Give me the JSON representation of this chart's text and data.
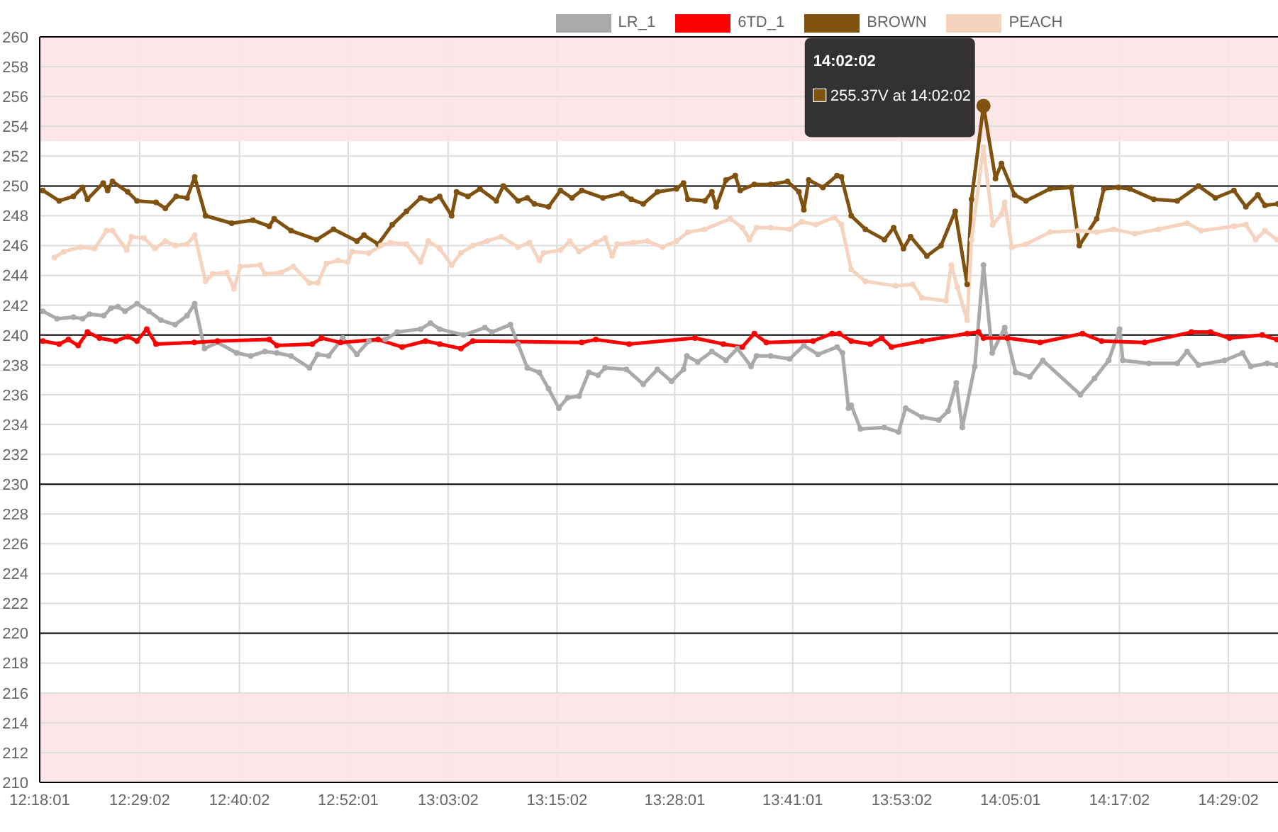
{
  "chart_data": {
    "type": "line",
    "legend": "top",
    "grid": true,
    "marker": "circle",
    "line_style": "solid",
    "xlim": [
      12.3003,
      14.575
    ],
    "xticks": [
      {
        "value": 12.3003,
        "label": "12:18:01"
      },
      {
        "value": 12.4839,
        "label": "12:29:02"
      },
      {
        "value": 12.6672,
        "label": "12:40:02"
      },
      {
        "value": 12.8669,
        "label": "12:52:01"
      },
      {
        "value": 13.0506,
        "label": "13:03:02"
      },
      {
        "value": 13.2506,
        "label": "13:15:02"
      },
      {
        "value": 13.4669,
        "label": "13:28:01"
      },
      {
        "value": 13.6836,
        "label": "13:41:01"
      },
      {
        "value": 13.8839,
        "label": "13:53:02"
      },
      {
        "value": 14.0836,
        "label": "14:05:01"
      },
      {
        "value": 14.2839,
        "label": "14:17:02"
      },
      {
        "value": 14.4839,
        "label": "14:29:02"
      }
    ],
    "ylim": [
      210,
      260
    ],
    "yticks": [
      210,
      212,
      214,
      216,
      218,
      220,
      222,
      224,
      226,
      228,
      230,
      232,
      234,
      236,
      238,
      240,
      242,
      244,
      246,
      248,
      250,
      252,
      254,
      256,
      258,
      260
    ],
    "bands": [
      {
        "axis": "y",
        "from": 253,
        "to": 260,
        "color": "#fde3e4"
      },
      {
        "axis": "y",
        "from": 210,
        "to": 216,
        "color": "#fde3e4"
      }
    ],
    "annotations": [
      "14:02:02",
      "255.37V at 14:02:02"
    ],
    "series": [
      {
        "name": "LR_1",
        "color": "#aaaaaa",
        "x": [
          12.306,
          12.332,
          12.362,
          12.379,
          12.392,
          12.418,
          12.431,
          12.444,
          12.457,
          12.479,
          12.501,
          12.523,
          12.549,
          12.571,
          12.585,
          12.603,
          12.627,
          12.662,
          12.688,
          12.714,
          12.736,
          12.762,
          12.796,
          12.811,
          12.831,
          12.857,
          12.883,
          12.905,
          12.935,
          12.957,
          13.0,
          13.018,
          13.035,
          13.079,
          13.118,
          13.131,
          13.165,
          13.179,
          13.196,
          13.218,
          13.235,
          13.254,
          13.27,
          13.291,
          13.309,
          13.326,
          13.339,
          13.378,
          13.409,
          13.435,
          13.461,
          13.483,
          13.489,
          13.509,
          13.535,
          13.561,
          13.582,
          13.607,
          13.617,
          13.643,
          13.678,
          13.704,
          13.73,
          13.765,
          13.775,
          13.786,
          13.791,
          13.808,
          13.852,
          13.878,
          13.891,
          13.921,
          13.952,
          13.969,
          13.984,
          13.995,
          14.018,
          14.034,
          14.05,
          14.073,
          14.093,
          14.119,
          14.143,
          14.212,
          14.238,
          14.264,
          14.284,
          14.29,
          14.338,
          14.39,
          14.408,
          14.429,
          14.477,
          14.51,
          14.525,
          14.555,
          14.573
        ],
        "values": [
          241.6,
          241.1,
          241.2,
          241.1,
          241.4,
          241.3,
          241.8,
          241.9,
          241.6,
          242.1,
          241.6,
          241.0,
          240.7,
          241.3,
          242.1,
          239.1,
          239.5,
          238.8,
          238.6,
          238.9,
          238.8,
          238.6,
          237.8,
          238.7,
          238.6,
          239.8,
          238.7,
          239.6,
          239.7,
          240.2,
          240.4,
          240.8,
          240.4,
          240.0,
          240.5,
          240.2,
          240.7,
          239.4,
          237.8,
          237.5,
          236.4,
          235.1,
          235.8,
          235.9,
          237.5,
          237.3,
          237.8,
          237.7,
          236.7,
          237.7,
          236.9,
          237.7,
          238.6,
          238.2,
          238.9,
          238.3,
          239.1,
          237.9,
          238.6,
          238.6,
          238.4,
          239.3,
          238.7,
          239.2,
          238.8,
          235.1,
          235.3,
          233.7,
          233.8,
          233.5,
          235.1,
          234.5,
          234.3,
          234.9,
          236.8,
          233.8,
          237.9,
          244.7,
          238.8,
          240.5,
          237.5,
          237.2,
          238.3,
          236.0,
          237.1,
          238.3,
          240.4,
          238.3,
          238.1,
          238.1,
          238.9,
          238.0,
          238.3,
          238.8,
          237.9,
          238.1,
          238.0
        ]
      },
      {
        "name": "6TD_1",
        "color": "#ff0000",
        "x": [
          12.306,
          12.336,
          12.353,
          12.371,
          12.388,
          12.41,
          12.44,
          12.462,
          12.479,
          12.497,
          12.514,
          12.584,
          12.627,
          12.722,
          12.736,
          12.801,
          12.818,
          12.853,
          12.922,
          12.966,
          13.009,
          13.035,
          13.074,
          13.096,
          13.296,
          13.322,
          13.383,
          13.504,
          13.556,
          13.591,
          13.613,
          13.635,
          13.721,
          13.756,
          13.769,
          13.791,
          13.826,
          13.847,
          13.865,
          13.921,
          14.004,
          14.025,
          14.034,
          14.078,
          14.138,
          14.216,
          14.251,
          14.33,
          14.416,
          14.451,
          14.486,
          14.546,
          14.573
        ],
        "values": [
          239.6,
          239.4,
          239.7,
          239.3,
          240.2,
          239.8,
          239.6,
          239.9,
          239.6,
          240.4,
          239.4,
          239.5,
          239.6,
          239.7,
          239.3,
          239.4,
          239.8,
          239.5,
          239.7,
          239.2,
          239.6,
          239.4,
          239.1,
          239.6,
          239.5,
          239.7,
          239.4,
          239.8,
          239.4,
          239.2,
          240.1,
          239.5,
          239.6,
          240.1,
          240.1,
          239.6,
          239.4,
          239.8,
          239.2,
          239.6,
          240.1,
          240.2,
          239.8,
          239.8,
          239.5,
          240.1,
          239.6,
          239.5,
          240.2,
          240.2,
          239.8,
          240.0,
          239.7
        ]
      },
      {
        "name": "BROWN",
        "color": "#7f5210",
        "x": [
          12.306,
          12.336,
          12.362,
          12.379,
          12.388,
          12.417,
          12.425,
          12.434,
          12.462,
          12.479,
          12.514,
          12.531,
          12.551,
          12.571,
          12.585,
          12.605,
          12.653,
          12.692,
          12.722,
          12.731,
          12.762,
          12.809,
          12.84,
          12.883,
          12.896,
          12.922,
          12.948,
          12.974,
          13.0,
          13.018,
          13.035,
          13.057,
          13.066,
          13.087,
          13.109,
          13.139,
          13.152,
          13.179,
          13.196,
          13.209,
          13.235,
          13.257,
          13.278,
          13.296,
          13.335,
          13.37,
          13.387,
          13.409,
          13.435,
          13.47,
          13.483,
          13.491,
          13.522,
          13.535,
          13.543,
          13.561,
          13.578,
          13.587,
          13.613,
          13.643,
          13.674,
          13.695,
          13.704,
          13.713,
          13.739,
          13.765,
          13.773,
          13.791,
          13.817,
          13.852,
          13.869,
          13.887,
          13.9,
          13.93,
          13.956,
          13.982,
          14.004,
          14.012,
          14.034,
          14.056,
          14.067,
          14.091,
          14.112,
          14.156,
          14.195,
          14.21,
          14.242,
          14.255,
          14.282,
          14.303,
          14.347,
          14.39,
          14.429,
          14.46,
          14.494,
          14.516,
          14.538,
          14.551,
          14.575
        ],
        "values": [
          249.7,
          249.0,
          249.3,
          249.9,
          249.1,
          250.2,
          249.7,
          250.3,
          249.6,
          249.0,
          248.9,
          248.5,
          249.3,
          249.2,
          250.6,
          248.0,
          247.5,
          247.7,
          247.3,
          247.8,
          247.0,
          246.4,
          247.1,
          246.3,
          246.7,
          246.1,
          247.4,
          248.3,
          249.2,
          249.0,
          249.3,
          248.0,
          249.6,
          249.3,
          249.8,
          249.0,
          250.0,
          249.0,
          249.2,
          248.8,
          248.6,
          249.7,
          249.2,
          249.7,
          249.2,
          249.5,
          249.1,
          248.8,
          249.6,
          249.8,
          250.2,
          249.1,
          249.0,
          249.6,
          248.6,
          250.4,
          250.7,
          249.7,
          250.1,
          250.1,
          250.3,
          249.6,
          248.4,
          250.4,
          249.9,
          250.7,
          250.6,
          248.0,
          247.1,
          246.4,
          247.2,
          245.8,
          246.6,
          245.3,
          246.0,
          248.3,
          243.4,
          249.1,
          255.37,
          250.5,
          251.5,
          249.4,
          249.0,
          249.8,
          249.9,
          246.0,
          247.8,
          249.8,
          249.9,
          249.8,
          249.1,
          249.0,
          250.0,
          249.2,
          249.7,
          248.6,
          249.4,
          248.7,
          248.8
        ]
      },
      {
        "name": "PEACH",
        "color": "#f5d3bf",
        "x": [
          12.327,
          12.345,
          12.375,
          12.401,
          12.423,
          12.434,
          12.46,
          12.469,
          12.492,
          12.512,
          12.531,
          12.549,
          12.571,
          12.585,
          12.605,
          12.618,
          12.644,
          12.657,
          12.669,
          12.705,
          12.714,
          12.744,
          12.766,
          12.796,
          12.811,
          12.827,
          12.848,
          12.866,
          12.874,
          12.905,
          12.927,
          12.944,
          12.974,
          13.0,
          13.014,
          13.035,
          13.057,
          13.074,
          13.096,
          13.122,
          13.148,
          13.179,
          13.2,
          13.218,
          13.226,
          13.257,
          13.274,
          13.291,
          13.322,
          13.339,
          13.352,
          13.361,
          13.391,
          13.417,
          13.444,
          13.47,
          13.491,
          13.522,
          13.569,
          13.591,
          13.604,
          13.617,
          13.643,
          13.678,
          13.7,
          13.726,
          13.76,
          13.773,
          13.791,
          13.817,
          13.873,
          13.904,
          13.921,
          13.965,
          13.975,
          13.986,
          14.004,
          14.012,
          14.034,
          14.051,
          14.067,
          14.073,
          14.086,
          14.112,
          14.156,
          14.208,
          14.242,
          14.273,
          14.312,
          14.356,
          14.408,
          14.434,
          14.494,
          14.516,
          14.534,
          14.551,
          14.573
        ],
        "values": [
          245.2,
          245.6,
          245.9,
          245.8,
          247.0,
          247.0,
          245.7,
          246.6,
          246.5,
          245.8,
          246.3,
          246.0,
          246.1,
          246.7,
          243.6,
          244.1,
          244.2,
          243.1,
          244.6,
          244.7,
          244.1,
          244.2,
          244.6,
          243.5,
          243.5,
          244.8,
          245.0,
          244.9,
          245.6,
          245.5,
          246.0,
          246.2,
          246.1,
          244.9,
          246.3,
          245.8,
          244.7,
          245.5,
          246.0,
          246.3,
          246.6,
          245.9,
          246.2,
          245.0,
          245.5,
          245.7,
          246.3,
          245.6,
          246.2,
          246.5,
          245.3,
          246.1,
          246.2,
          246.3,
          245.9,
          246.3,
          246.9,
          247.1,
          247.8,
          247.2,
          246.4,
          247.2,
          247.2,
          247.1,
          247.6,
          247.4,
          247.9,
          247.4,
          244.4,
          243.6,
          243.3,
          243.4,
          242.5,
          242.3,
          244.7,
          243.2,
          241.0,
          246.4,
          252.6,
          247.4,
          248.1,
          248.9,
          245.9,
          246.1,
          246.9,
          247.0,
          246.9,
          247.1,
          246.8,
          247.1,
          247.5,
          247.0,
          247.3,
          247.4,
          246.4,
          247.0,
          246.4
        ]
      }
    ]
  }
}
